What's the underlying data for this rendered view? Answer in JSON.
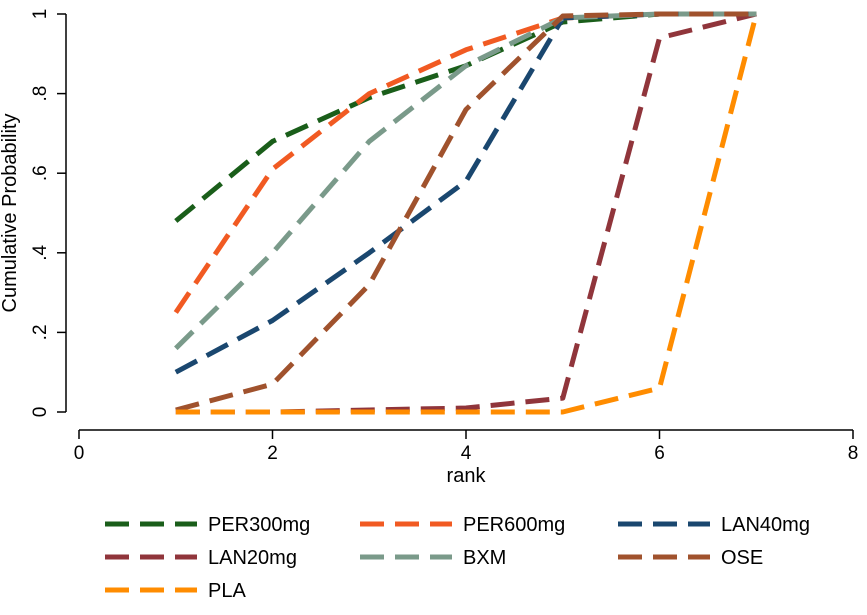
{
  "chart_data": {
    "type": "line",
    "title": "",
    "xlabel": "rank",
    "ylabel": "Cumulative Probability",
    "xlim": [
      0,
      8
    ],
    "ylim": [
      0,
      1
    ],
    "x_ticks": [
      0,
      2,
      4,
      6,
      8
    ],
    "x_tick_labels": [
      "0",
      "2",
      "4",
      "6",
      "8"
    ],
    "y_ticks": [
      0,
      0.2,
      0.4,
      0.6,
      0.8,
      1
    ],
    "y_tick_labels": [
      "0",
      ".2",
      ".4",
      ".6",
      ".8",
      "1"
    ],
    "grid": false,
    "legend_position": "bottom",
    "x": [
      1,
      2,
      3,
      4,
      5,
      6,
      7
    ],
    "series": [
      {
        "name": "PER300mg",
        "color": "#1a5e1a",
        "values": [
          0.48,
          0.68,
          0.79,
          0.87,
          0.98,
          1.0,
          1.0
        ]
      },
      {
        "name": "PER600mg",
        "color": "#f15a22",
        "values": [
          0.25,
          0.61,
          0.8,
          0.91,
          0.99,
          1.0,
          1.0
        ]
      },
      {
        "name": "LAN40mg",
        "color": "#1a476f",
        "values": [
          0.1,
          0.23,
          0.4,
          0.58,
          0.99,
          1.0,
          1.0
        ]
      },
      {
        "name": "LAN20mg",
        "color": "#90353b",
        "values": [
          0.0,
          0.0,
          0.005,
          0.01,
          0.035,
          0.94,
          1.0
        ]
      },
      {
        "name": "BXM",
        "color": "#7a9a8a",
        "values": [
          0.16,
          0.4,
          0.68,
          0.87,
          0.99,
          1.0,
          1.0
        ]
      },
      {
        "name": "OSE",
        "color": "#a0522d",
        "values": [
          0.005,
          0.07,
          0.32,
          0.76,
          0.995,
          1.0,
          1.0
        ]
      },
      {
        "name": "PLA",
        "color": "#ff8c00",
        "values": [
          0.0,
          0.0,
          0.0,
          0.0,
          0.0,
          0.06,
          1.0
        ]
      }
    ]
  }
}
